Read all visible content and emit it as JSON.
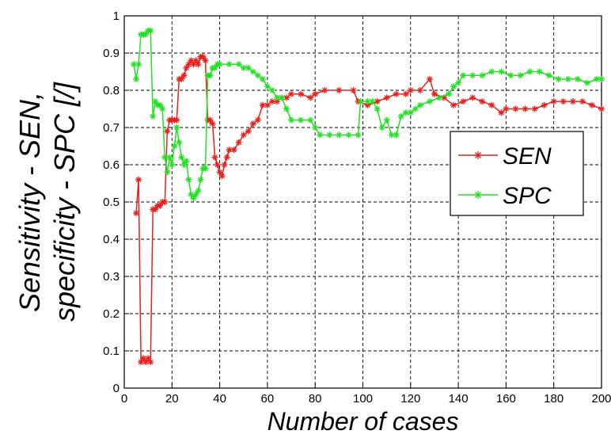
{
  "chart_data": {
    "type": "line",
    "title": "",
    "xlabel": "Number of cases",
    "ylabel_lines": [
      "Sensitivity - SEN,",
      "specificity - SPC [/]"
    ],
    "xlim": [
      0,
      200
    ],
    "ylim": [
      0,
      1
    ],
    "x_ticks": [
      0,
      20,
      40,
      60,
      80,
      100,
      120,
      140,
      160,
      180,
      200
    ],
    "y_ticks": [
      0,
      0.1,
      0.2,
      0.3,
      0.4,
      0.5,
      0.6,
      0.7,
      0.8,
      0.9,
      1
    ],
    "x_tick_labels": [
      "0",
      "20",
      "40",
      "60",
      "80",
      "100",
      "120",
      "140",
      "160",
      "180",
      "200"
    ],
    "y_tick_labels": [
      "0",
      "0.1",
      "0.2",
      "0.3",
      "0.4",
      "0.5",
      "0.6",
      "0.7",
      "0.8",
      "0.9",
      "1"
    ],
    "grid": true,
    "legend_position": "middle-right",
    "series": [
      {
        "name": "SEN",
        "color": "#e8201c",
        "marker": "asterisk",
        "points": [
          [
            5,
            0.47
          ],
          [
            6,
            0.56
          ],
          [
            7,
            0.07
          ],
          [
            8,
            0.08
          ],
          [
            9,
            0.07
          ],
          [
            10,
            0.08
          ],
          [
            11,
            0.07
          ],
          [
            12,
            0.48
          ],
          [
            13,
            0.48
          ],
          [
            14,
            0.49
          ],
          [
            15,
            0.49
          ],
          [
            16,
            0.5
          ],
          [
            17,
            0.5
          ],
          [
            18,
            0.69
          ],
          [
            19,
            0.72
          ],
          [
            20,
            0.72
          ],
          [
            21,
            0.72
          ],
          [
            22,
            0.72
          ],
          [
            23,
            0.83
          ],
          [
            24,
            0.83
          ],
          [
            25,
            0.84
          ],
          [
            26,
            0.86
          ],
          [
            27,
            0.87
          ],
          [
            28,
            0.88
          ],
          [
            29,
            0.87
          ],
          [
            30,
            0.88
          ],
          [
            31,
            0.87
          ],
          [
            32,
            0.89
          ],
          [
            33,
            0.89
          ],
          [
            34,
            0.88
          ],
          [
            35,
            0.72
          ],
          [
            36,
            0.72
          ],
          [
            37,
            0.71
          ],
          [
            38,
            0.62
          ],
          [
            39,
            0.6
          ],
          [
            40,
            0.58
          ],
          [
            41,
            0.57
          ],
          [
            42,
            0.6
          ],
          [
            43,
            0.62
          ],
          [
            44,
            0.64
          ],
          [
            46,
            0.64
          ],
          [
            48,
            0.66
          ],
          [
            50,
            0.68
          ],
          [
            52,
            0.69
          ],
          [
            54,
            0.71
          ],
          [
            56,
            0.72
          ],
          [
            58,
            0.76
          ],
          [
            60,
            0.76
          ],
          [
            62,
            0.77
          ],
          [
            64,
            0.77
          ],
          [
            66,
            0.78
          ],
          [
            68,
            0.78
          ],
          [
            70,
            0.79
          ],
          [
            74,
            0.79
          ],
          [
            78,
            0.78
          ],
          [
            80,
            0.79
          ],
          [
            84,
            0.8
          ],
          [
            90,
            0.8
          ],
          [
            96,
            0.8
          ],
          [
            98,
            0.77
          ],
          [
            102,
            0.76
          ],
          [
            106,
            0.77
          ],
          [
            110,
            0.78
          ],
          [
            114,
            0.79
          ],
          [
            118,
            0.79
          ],
          [
            120,
            0.8
          ],
          [
            124,
            0.8
          ],
          [
            128,
            0.83
          ],
          [
            130,
            0.79
          ],
          [
            134,
            0.78
          ],
          [
            138,
            0.76
          ],
          [
            142,
            0.77
          ],
          [
            146,
            0.78
          ],
          [
            150,
            0.77
          ],
          [
            154,
            0.76
          ],
          [
            158,
            0.74
          ],
          [
            160,
            0.75
          ],
          [
            164,
            0.75
          ],
          [
            168,
            0.75
          ],
          [
            172,
            0.75
          ],
          [
            176,
            0.76
          ],
          [
            180,
            0.77
          ],
          [
            184,
            0.77
          ],
          [
            188,
            0.77
          ],
          [
            192,
            0.77
          ],
          [
            196,
            0.76
          ],
          [
            200,
            0.75
          ]
        ]
      },
      {
        "name": "SPC",
        "color": "#22e022",
        "marker": "asterisk",
        "points": [
          [
            4,
            0.87
          ],
          [
            5,
            0.83
          ],
          [
            6,
            0.87
          ],
          [
            7,
            0.95
          ],
          [
            8,
            0.95
          ],
          [
            9,
            0.95
          ],
          [
            10,
            0.96
          ],
          [
            11,
            0.96
          ],
          [
            12,
            0.73
          ],
          [
            13,
            0.77
          ],
          [
            14,
            0.76
          ],
          [
            15,
            0.76
          ],
          [
            16,
            0.75
          ],
          [
            17,
            0.62
          ],
          [
            18,
            0.58
          ],
          [
            19,
            0.62
          ],
          [
            20,
            0.6
          ],
          [
            21,
            0.65
          ],
          [
            22,
            0.7
          ],
          [
            23,
            0.66
          ],
          [
            24,
            0.62
          ],
          [
            25,
            0.6
          ],
          [
            26,
            0.61
          ],
          [
            27,
            0.56
          ],
          [
            28,
            0.52
          ],
          [
            29,
            0.51
          ],
          [
            30,
            0.52
          ],
          [
            31,
            0.53
          ],
          [
            32,
            0.56
          ],
          [
            33,
            0.59
          ],
          [
            34,
            0.59
          ],
          [
            35,
            0.84
          ],
          [
            36,
            0.84
          ],
          [
            37,
            0.86
          ],
          [
            38,
            0.86
          ],
          [
            39,
            0.87
          ],
          [
            40,
            0.87
          ],
          [
            44,
            0.87
          ],
          [
            48,
            0.87
          ],
          [
            50,
            0.86
          ],
          [
            52,
            0.86
          ],
          [
            54,
            0.85
          ],
          [
            56,
            0.84
          ],
          [
            58,
            0.83
          ],
          [
            60,
            0.81
          ],
          [
            62,
            0.8
          ],
          [
            64,
            0.78
          ],
          [
            66,
            0.78
          ],
          [
            68,
            0.75
          ],
          [
            70,
            0.72
          ],
          [
            74,
            0.72
          ],
          [
            78,
            0.72
          ],
          [
            80,
            0.7
          ],
          [
            82,
            0.68
          ],
          [
            86,
            0.68
          ],
          [
            90,
            0.68
          ],
          [
            94,
            0.68
          ],
          [
            98,
            0.68
          ],
          [
            99,
            0.77
          ],
          [
            102,
            0.77
          ],
          [
            104,
            0.77
          ],
          [
            106,
            0.75
          ],
          [
            108,
            0.7
          ],
          [
            110,
            0.72
          ],
          [
            112,
            0.68
          ],
          [
            114,
            0.68
          ],
          [
            116,
            0.73
          ],
          [
            118,
            0.74
          ],
          [
            120,
            0.74
          ],
          [
            122,
            0.75
          ],
          [
            124,
            0.76
          ],
          [
            128,
            0.77
          ],
          [
            132,
            0.78
          ],
          [
            136,
            0.79
          ],
          [
            138,
            0.81
          ],
          [
            140,
            0.82
          ],
          [
            142,
            0.84
          ],
          [
            146,
            0.84
          ],
          [
            150,
            0.84
          ],
          [
            154,
            0.85
          ],
          [
            158,
            0.85
          ],
          [
            162,
            0.84
          ],
          [
            166,
            0.84
          ],
          [
            170,
            0.85
          ],
          [
            174,
            0.85
          ],
          [
            178,
            0.84
          ],
          [
            182,
            0.83
          ],
          [
            186,
            0.83
          ],
          [
            190,
            0.83
          ],
          [
            194,
            0.82
          ],
          [
            198,
            0.83
          ],
          [
            200,
            0.83
          ]
        ]
      }
    ]
  }
}
